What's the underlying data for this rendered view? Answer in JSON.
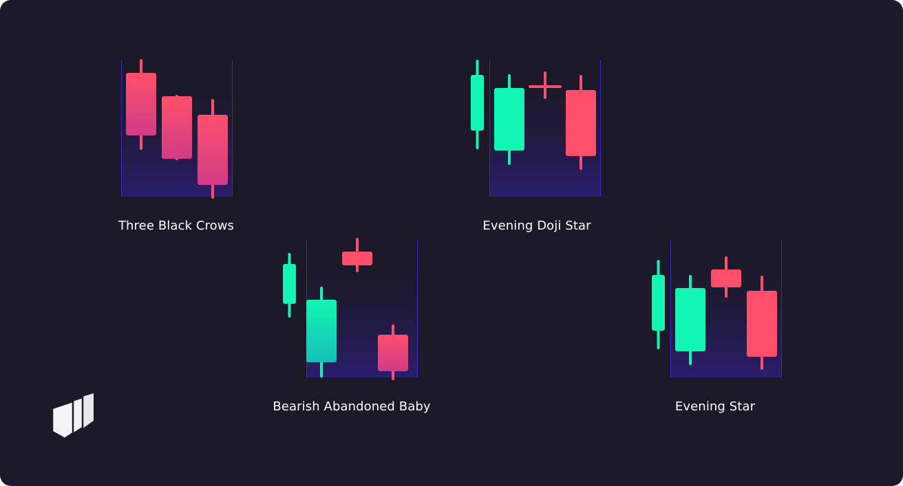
{
  "colors": {
    "background": "#1c1929",
    "bullish": "#13f5b3",
    "bearish": "#ff4f6d",
    "bearish_deep": "#d13c86",
    "frame": "#3d28c9",
    "frame_fill": "#2c1d6e",
    "text": "#ffffff",
    "logo": "#f2f2f7"
  },
  "patterns": [
    {
      "id": "three-black-crows",
      "label": "Three Black Crows",
      "candles": [
        {
          "color": "bearish",
          "open": 180,
          "close": 89,
          "high": 198,
          "low": 70
        },
        {
          "color": "bearish",
          "open": 146,
          "close": 55,
          "high": 146,
          "low": 55
        },
        {
          "color": "bearish",
          "open": 119,
          "close": 17,
          "high": 140,
          "low": -1
        }
      ]
    },
    {
      "id": "evening-doji-star",
      "label": "Evening Doji Star",
      "candles": [
        {
          "color": "bullish",
          "open": 96,
          "close": 177,
          "high": 197,
          "low": 71
        },
        {
          "color": "bullish",
          "open": 67,
          "close": 158,
          "high": 176,
          "low": 48
        },
        {
          "color": "bearish",
          "open": 160,
          "close": 160,
          "high": 180,
          "low": 144
        },
        {
          "color": "bearish",
          "open": 155,
          "close": 59,
          "high": 175,
          "low": 41
        }
      ]
    },
    {
      "id": "bearish-abandoned-baby",
      "label": "Bearish Abandoned Baby",
      "candles": [
        {
          "color": "bullish",
          "open": 107,
          "close": 165,
          "high": 179,
          "low": 89
        },
        {
          "color": "bullish",
          "open": 22,
          "close": 113,
          "high": 130,
          "low": 2
        },
        {
          "color": "bearish",
          "open": 183,
          "close": 163,
          "high": 201,
          "low": 155
        },
        {
          "color": "bearish",
          "open": 62,
          "close": 9,
          "high": 75,
          "low": -2
        }
      ]
    },
    {
      "id": "evening-star",
      "label": "Evening Star",
      "candles": [
        {
          "color": "bullish",
          "open": 68,
          "close": 149,
          "high": 169,
          "low": 43
        },
        {
          "color": "bullish",
          "open": 38,
          "close": 130,
          "high": 147,
          "low": 20
        },
        {
          "color": "bearish",
          "open": 157,
          "close": 131,
          "high": 174,
          "low": 118
        },
        {
          "color": "bearish",
          "open": 126,
          "close": 30,
          "high": 146,
          "low": 13
        }
      ]
    }
  ],
  "logo": {
    "icon": "layered-pages-logo-icon"
  }
}
